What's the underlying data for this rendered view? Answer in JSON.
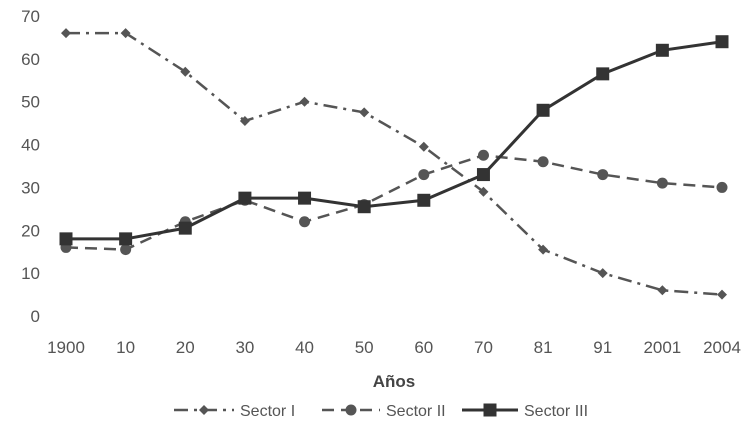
{
  "chart_data": {
    "type": "line",
    "title": "",
    "xlabel": "Años",
    "ylabel": "",
    "ylim": [
      0,
      70
    ],
    "y_ticks": [
      "0",
      "10",
      "20",
      "30",
      "40",
      "50",
      "60",
      "70"
    ],
    "categories": [
      "1900",
      "10",
      "20",
      "30",
      "40",
      "50",
      "60",
      "70",
      "81",
      "91",
      "2001",
      "2004"
    ],
    "grid": false,
    "legend_position": "bottom",
    "series": [
      {
        "name": "Sector I",
        "marker": "diamond",
        "line_style": "dash-dot",
        "color": "#555555",
        "values": [
          66,
          66,
          57,
          45.5,
          50,
          47.5,
          39.5,
          29,
          15.5,
          10,
          6,
          5
        ]
      },
      {
        "name": "Sector II",
        "marker": "circle",
        "line_style": "dashed",
        "color": "#555555",
        "values": [
          16,
          15.5,
          22,
          27,
          22,
          26,
          33,
          37.5,
          36,
          33,
          31,
          30
        ]
      },
      {
        "name": "Sector III",
        "marker": "square",
        "line_style": "solid",
        "color": "#333333",
        "values": [
          18,
          18,
          20.5,
          27.5,
          27.5,
          25.5,
          27,
          33,
          48,
          56.5,
          62,
          64
        ]
      }
    ]
  }
}
